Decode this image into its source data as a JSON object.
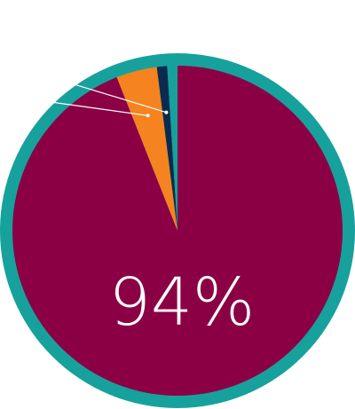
{
  "chart_data": {
    "type": "pie",
    "title": "",
    "center_label": "94%",
    "series": [
      {
        "slices": [
          {
            "value": 94,
            "color": "#8b0045"
          },
          {
            "value": 4,
            "color": "#f5831f"
          },
          {
            "value": 1,
            "color": "#0c2a4f"
          },
          {
            "value": 1,
            "color": "#17a19c"
          }
        ]
      }
    ],
    "outer_ring_color": "#17a19c",
    "leader_line_color": "#ffffff"
  }
}
